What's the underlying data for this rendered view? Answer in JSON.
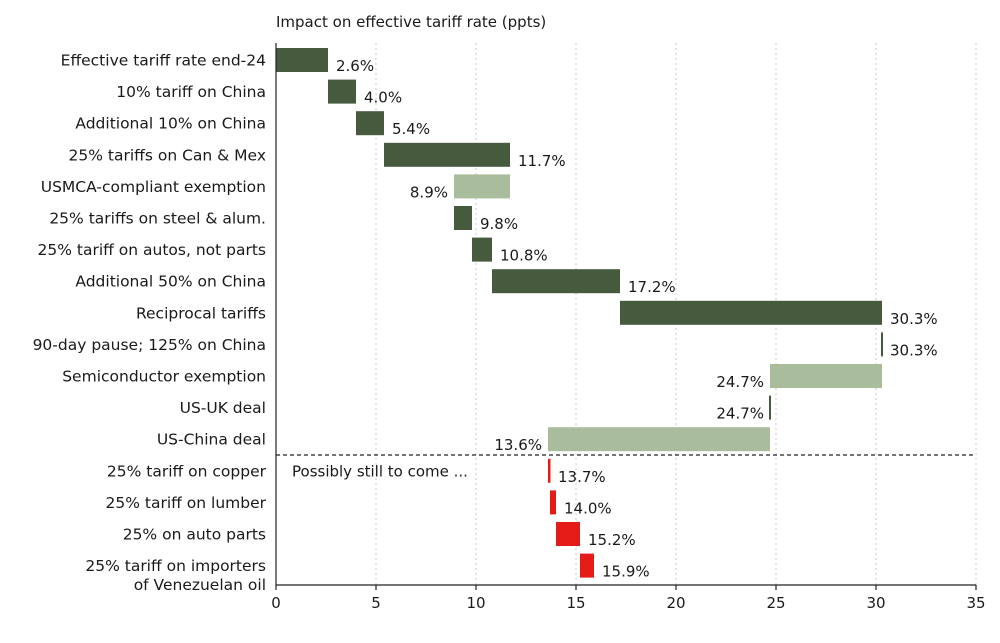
{
  "chart_data": {
    "type": "waterfall",
    "title": "Impact on effective tariff rate (ppts)",
    "xlim": [
      0,
      35
    ],
    "xticks": [
      0,
      5,
      10,
      15,
      20,
      25,
      30,
      35
    ],
    "grid": "vertical dotted",
    "colors": {
      "increase": "#465a3e",
      "decrease": "#a9bd9d",
      "future": "#e41b17"
    },
    "annotation": "Possibly still to come ...",
    "divider_after": "US-China deal",
    "bars": [
      {
        "label": "Effective tariff rate end-24",
        "start": 0,
        "end": 2.6,
        "value_label": "2.6%",
        "kind": "increase"
      },
      {
        "label": "10% tariff on China",
        "start": 2.6,
        "end": 4.0,
        "value_label": "4.0%",
        "kind": "increase"
      },
      {
        "label": "Additional 10% on China",
        "start": 4.0,
        "end": 5.4,
        "value_label": "5.4%",
        "kind": "increase"
      },
      {
        "label": "25% tariffs on Can & Mex",
        "start": 5.4,
        "end": 11.7,
        "value_label": "11.7%",
        "kind": "increase"
      },
      {
        "label": "USMCA-compliant exemption",
        "start": 11.7,
        "end": 8.9,
        "value_label": "8.9%",
        "kind": "decrease"
      },
      {
        "label": "25% tariffs on steel & alum.",
        "start": 8.9,
        "end": 9.8,
        "value_label": "9.8%",
        "kind": "increase"
      },
      {
        "label": "25% tariff on autos, not parts",
        "start": 9.8,
        "end": 10.8,
        "value_label": "10.8%",
        "kind": "increase"
      },
      {
        "label": "Additional 50% on China",
        "start": 10.8,
        "end": 17.2,
        "value_label": "17.2%",
        "kind": "increase"
      },
      {
        "label": "Reciprocal tariffs",
        "start": 17.2,
        "end": 30.3,
        "value_label": "30.3%",
        "kind": "increase"
      },
      {
        "label": "90-day pause; 125% on China",
        "start": 30.3,
        "end": 30.3,
        "value_label": "30.3%",
        "kind": "increase"
      },
      {
        "label": "Semiconductor exemption",
        "start": 30.3,
        "end": 24.7,
        "value_label": "24.7%",
        "kind": "decrease"
      },
      {
        "label": "US-UK deal",
        "start": 24.7,
        "end": 24.7,
        "value_label": "24.7%",
        "kind": "decrease"
      },
      {
        "label": "US-China deal",
        "start": 24.7,
        "end": 13.6,
        "value_label": "13.6%",
        "kind": "decrease"
      },
      {
        "label": "25% tariff on copper",
        "start": 13.6,
        "end": 13.7,
        "value_label": "13.7%",
        "kind": "future"
      },
      {
        "label": "25% tariff on lumber",
        "start": 13.7,
        "end": 14.0,
        "value_label": "14.0%",
        "kind": "future"
      },
      {
        "label": "25% on auto parts",
        "start": 14.0,
        "end": 15.2,
        "value_label": "15.2%",
        "kind": "future"
      },
      {
        "label": [
          "25% tariff on importers",
          "of Venezuelan oil"
        ],
        "start": 15.2,
        "end": 15.9,
        "value_label": "15.9%",
        "kind": "future"
      }
    ]
  }
}
